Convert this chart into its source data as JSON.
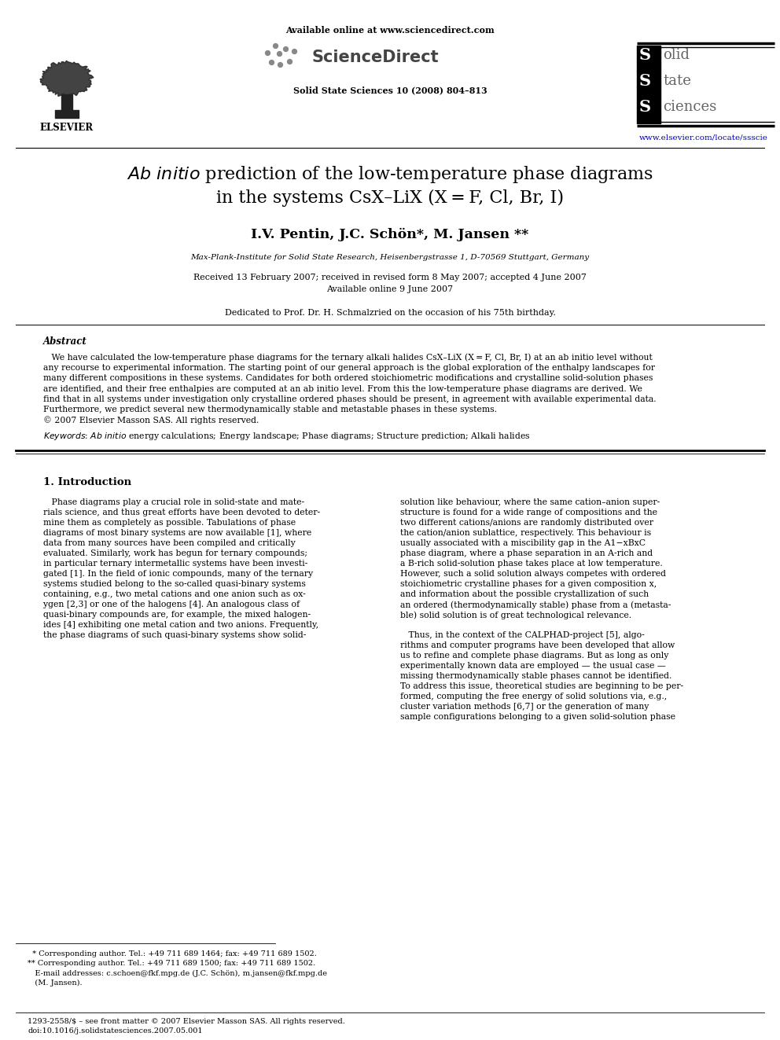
{
  "bg_color": "#ffffff",
  "header_available": "Available online at www.sciencedirect.com",
  "header_journal_ref": "Solid State Sciences 10 (2008) 804–813",
  "header_url": "www.elsevier.com/locate/ssscie",
  "title_line1_pre": "Ab initio",
  "title_line1_post": " prediction of the low-temperature phase diagrams",
  "title_line2": "in the systems CsX–LiX (X = F, Cl, Br, I)",
  "authors": "I.V. Pentin, J.C. Schön*, M. Jansen **",
  "affiliation": "Max-Plank-Institute for Solid State Research, Heisenbergstrasse 1, D-70569 Stuttgart, Germany",
  "received": "Received 13 February 2007; received in revised form 8 May 2007; accepted 4 June 2007",
  "available_online": "Available online 9 June 2007",
  "dedication": "Dedicated to Prof. Dr. H. Schmalzried on the occasion of his 75th birthday.",
  "abstract_title": "Abstract",
  "keywords_line": "Keywords: Ab initio energy calculations; Energy landscape; Phase diagrams; Structure prediction; Alkali halides",
  "section1_title": "1. Introduction",
  "footnote_star": "  * Corresponding author. Tel.: +49 711 689 1464; fax: +49 711 689 1502.",
  "footnote_dstar": "** Corresponding author. Tel.: +49 711 689 1500; fax: +49 711 689 1502.",
  "footnote_email1": "   E-mail addresses: c.schoen@fkf.mpg.de (J.C. Schön), m.jansen@fkf.mpg.de",
  "footnote_email2": "   (M. Jansen).",
  "bottom_issn": "1293-2558/$ – see front matter © 2007 Elsevier Masson SAS. All rights reserved.",
  "bottom_doi": "doi:10.1016/j.solidstatesciences.2007.05.001",
  "abstract_lines": [
    "   We have calculated the low-temperature phase diagrams for the ternary alkali halides CsX–LiX (X = F, Cl, Br, I) at an ab initio level without",
    "any recourse to experimental information. The starting point of our general approach is the global exploration of the enthalpy landscapes for",
    "many different compositions in these systems. Candidates for both ordered stoichiometric modifications and crystalline solid-solution phases",
    "are identified, and their free enthalpies are computed at an ab initio level. From this the low-temperature phase diagrams are derived. We",
    "find that in all systems under investigation only crystalline ordered phases should be present, in agreement with available experimental data.",
    "Furthermore, we predict several new thermodynamically stable and metastable phases in these systems.",
    "© 2007 Elsevier Masson SAS. All rights reserved."
  ],
  "col1_lines": [
    "   Phase diagrams play a crucial role in solid-state and mate-",
    "rials science, and thus great efforts have been devoted to deter-",
    "mine them as completely as possible. Tabulations of phase",
    "diagrams of most binary systems are now available [1], where",
    "data from many sources have been compiled and critically",
    "evaluated. Similarly, work has begun for ternary compounds;",
    "in particular ternary intermetallic systems have been investi-",
    "gated [1]. In the field of ionic compounds, many of the ternary",
    "systems studied belong to the so-called quasi-binary systems",
    "containing, e.g., two metal cations and one anion such as ox-",
    "ygen [2,3] or one of the halogens [4]. An analogous class of",
    "quasi-binary compounds are, for example, the mixed halogen-",
    "ides [4] exhibiting one metal cation and two anions. Frequently,",
    "the phase diagrams of such quasi-binary systems show solid-"
  ],
  "col2_lines": [
    "solution like behaviour, where the same cation–anion super-",
    "structure is found for a wide range of compositions and the",
    "two different cations/anions are randomly distributed over",
    "the cation/anion sublattice, respectively. This behaviour is",
    "usually associated with a miscibility gap in the A1−xBxC",
    "phase diagram, where a phase separation in an A-rich and",
    "a B-rich solid-solution phase takes place at low temperature.",
    "However, such a solid solution always competes with ordered",
    "stoichiometric crystalline phases for a given composition x,",
    "and information about the possible crystallization of such",
    "an ordered (thermodynamically stable) phase from a (metasta-",
    "ble) solid solution is of great technological relevance.",
    "   Thus, in the context of the CALPHAD-project [5], algo-",
    "rithms and computer programs have been developed that allow",
    "us to refine and complete phase diagrams. But as long as only",
    "experimentally known data are employed — the usual case —",
    "missing thermodynamically stable phases cannot be identified.",
    "To address this issue, theoretical studies are beginning to be per-",
    "formed, computing the free energy of solid solutions via, e.g.,",
    "cluster variation methods [6,7] or the generation of many",
    "sample configurations belonging to a given solid-solution phase"
  ]
}
